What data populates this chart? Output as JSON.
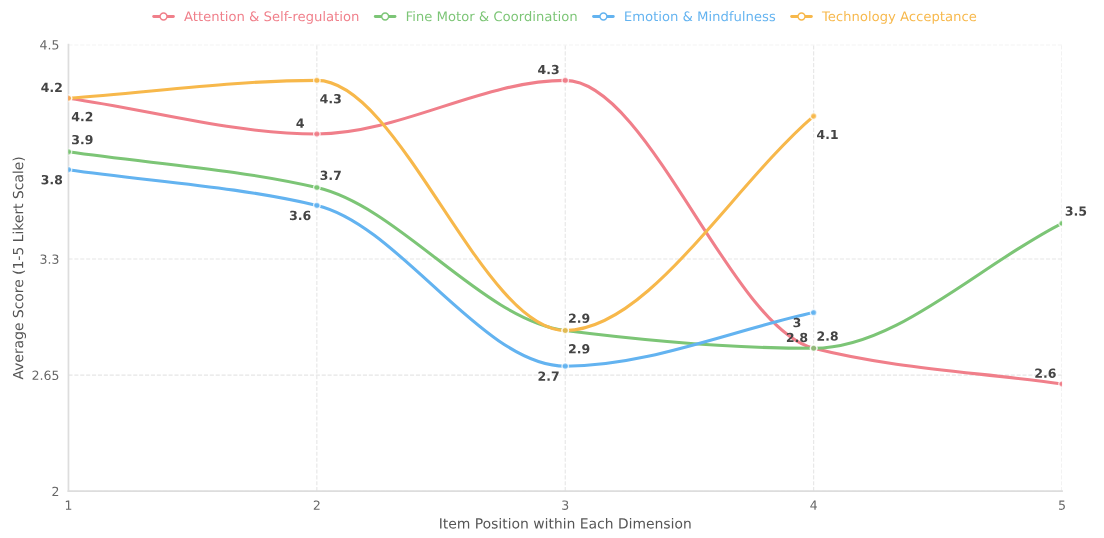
{
  "chart_data": {
    "type": "line",
    "xlabel": "Item Position within Each Dimension",
    "ylabel": "Average Score (1-5 Likert Scale)",
    "x": [
      1,
      2,
      3,
      4,
      5
    ],
    "series": [
      {
        "name": "Attention & Self-regulation",
        "color": "#f07f8a",
        "values": [
          4.2,
          4,
          4.3,
          2.8,
          2.6
        ]
      },
      {
        "name": "Fine Motor & Coordination",
        "color": "#7cc576",
        "values": [
          3.9,
          3.7,
          2.9,
          2.8,
          3.5
        ]
      },
      {
        "name": "Emotion & Mindfulness",
        "color": "#63b3f0",
        "values": [
          3.8,
          3.6,
          2.7,
          3,
          null
        ]
      },
      {
        "name": "Technology Acceptance",
        "color": "#f7b84b",
        "values": [
          4.2,
          4.3,
          2.9,
          4.1,
          null
        ]
      }
    ],
    "xlim": [
      1,
      5
    ],
    "xticks": [
      1,
      2,
      3,
      4,
      5
    ],
    "ylim": [
      2,
      4.5
    ],
    "yticks": [
      2,
      2.65,
      3.3,
      4.5
    ],
    "grid": true,
    "legend": "top",
    "marker": "circle",
    "line_style": "solid",
    "data_labels": true
  }
}
